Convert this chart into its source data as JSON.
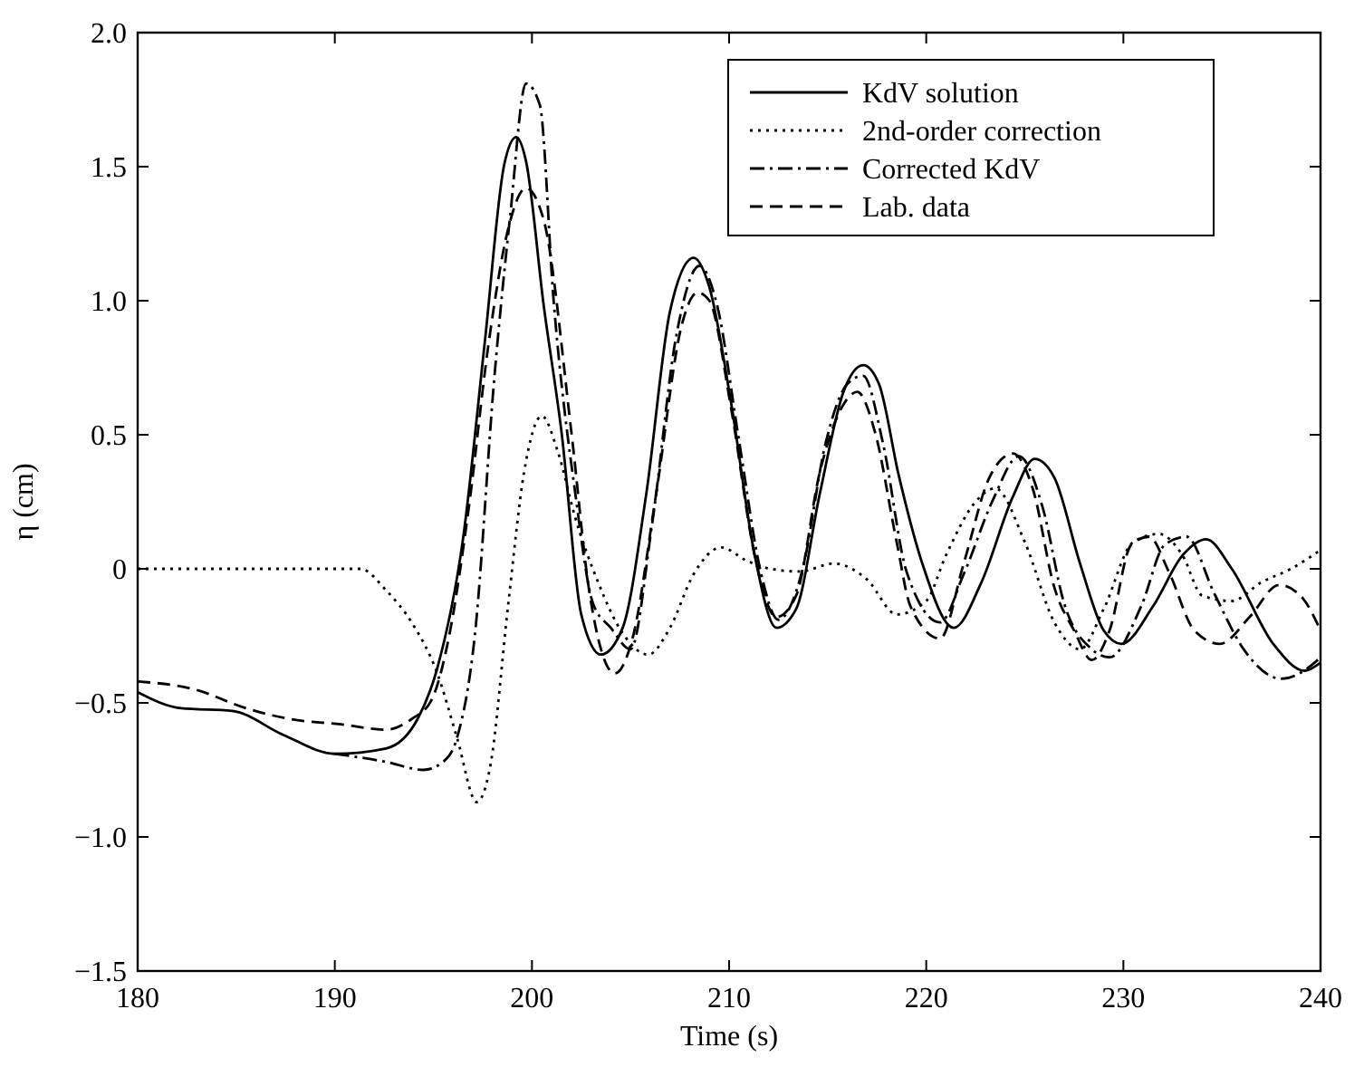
{
  "chart_data": {
    "type": "line",
    "xlabel": "Time (s)",
    "ylabel": "η (cm)",
    "xlim": [
      180,
      240
    ],
    "ylim": [
      -1.5,
      2
    ],
    "xticks": [
      180,
      190,
      200,
      210,
      220,
      230,
      240
    ],
    "yticks": [
      {
        "value": -1.5,
        "label": "−1.5"
      },
      {
        "value": -1,
        "label": "−1.0"
      },
      {
        "value": -0.5,
        "label": "−0.5"
      },
      0,
      {
        "value": 0.5,
        "label": "0.5"
      },
      {
        "value": 1,
        "label": "1.0"
      },
      {
        "value": 1.5,
        "label": "1.5"
      },
      {
        "value": 2,
        "label": "2.0"
      }
    ],
    "grid": false,
    "legend": "top right",
    "series": [
      {
        "name": "KdV solution",
        "color": "#000000",
        "line_style": "solid",
        "x": [
          180,
          182.2,
          184.8,
          187.4,
          190,
          192.6,
          194.2,
          195.2,
          196.5,
          197.6,
          198.6,
          199.2,
          199.7,
          200.6,
          201.5,
          202.5,
          203.5,
          204.6,
          205.8,
          207,
          208.2,
          209,
          210.1,
          211.3,
          212.4,
          213.4,
          214.6,
          215.8,
          216.8,
          217.6,
          218.6,
          219.8,
          221.4,
          222.8,
          224.4,
          225.5,
          226.5,
          227.8,
          229,
          229.9,
          231.5,
          233,
          234.2,
          235.5,
          237.6,
          239.2,
          240
        ],
        "values": [
          -0.46,
          -0.52,
          -0.53,
          -0.62,
          -0.69,
          -0.67,
          -0.56,
          -0.37,
          0.11,
          0.84,
          1.51,
          1.61,
          1.52,
          0.98,
          0.51,
          -0.17,
          -0.32,
          -0.22,
          0.28,
          0.96,
          1.16,
          1.05,
          0.62,
          0.05,
          -0.22,
          -0.15,
          0.28,
          0.66,
          0.76,
          0.69,
          0.35,
          0.02,
          -0.22,
          -0.05,
          0.27,
          0.41,
          0.34,
          0.02,
          -0.23,
          -0.28,
          -0.14,
          0.05,
          0.11,
          0,
          -0.28,
          -0.38,
          -0.35
        ]
      },
      {
        "name": "2nd-order correction",
        "color": "#000000",
        "line_style": "dotted",
        "x": [
          180,
          185,
          191.3,
          192.6,
          193.9,
          195.2,
          196.2,
          197.2,
          197.9,
          198.8,
          199.6,
          200.5,
          201.3,
          202.2,
          203.3,
          204.6,
          205.9,
          207,
          208.2,
          209.6,
          210.9,
          212.1,
          213.6,
          215.3,
          217,
          218.5,
          220,
          221,
          222.5,
          223.5,
          225,
          226.5,
          227.8,
          229,
          230.5,
          231.8,
          233,
          234,
          235.5,
          237,
          238.5,
          240
        ],
        "values": [
          0,
          0,
          0,
          -0.08,
          -0.2,
          -0.39,
          -0.63,
          -0.87,
          -0.73,
          -0.13,
          0.36,
          0.57,
          0.44,
          0.19,
          -0.04,
          -0.24,
          -0.32,
          -0.22,
          -0.02,
          0.08,
          0.03,
          0,
          -0.01,
          0.02,
          -0.04,
          -0.17,
          -0.12,
          0.05,
          0.25,
          0.3,
          0.1,
          -0.2,
          -0.3,
          -0.15,
          0.1,
          0.13,
          0.05,
          -0.1,
          -0.12,
          -0.05,
          0,
          0.07
        ]
      },
      {
        "name": "Corrected KdV",
        "color": "#000000",
        "line_style": "dashdot",
        "x": [
          190,
          192.6,
          194.5,
          195.5,
          196.2,
          197.1,
          198.1,
          198.9,
          199.7,
          200.4,
          201.1,
          202.2,
          203.1,
          204,
          205,
          206.1,
          207.3,
          208.5,
          209.4,
          210.5,
          211.6,
          212.5,
          213.7,
          214.9,
          216,
          216.8,
          217.8,
          219,
          220.7,
          221.9,
          223.4,
          224.7,
          225.9,
          227,
          228.4,
          229.3,
          230.9,
          232.1,
          233.2,
          234.6,
          236.1,
          238,
          239.7,
          240
        ],
        "values": [
          -0.69,
          -0.72,
          -0.75,
          -0.72,
          -0.63,
          -0.25,
          0.72,
          1.32,
          1.81,
          1.73,
          1,
          0.28,
          -0.13,
          -0.22,
          -0.3,
          0.17,
          0.86,
          1.13,
          0.98,
          0.48,
          -0.01,
          -0.19,
          -0.01,
          0.47,
          0.69,
          0.72,
          0.47,
          -0.01,
          -0.2,
          -0.02,
          0.26,
          0.42,
          0.23,
          -0.13,
          -0.3,
          -0.33,
          -0.14,
          0.09,
          0.12,
          -0.09,
          -0.3,
          -0.41,
          -0.35,
          -0.33
        ]
      },
      {
        "name": "Lab. data",
        "color": "#000000",
        "line_style": "dashed",
        "x": [
          180,
          182.9,
          185.5,
          187.7,
          190.3,
          192.6,
          193.9,
          194.9,
          195.8,
          196.8,
          197.8,
          198.8,
          199.7,
          200.6,
          202,
          202.9,
          204.2,
          205.1,
          206.3,
          207.6,
          208.4,
          209,
          210.1,
          211.3,
          212.4,
          213.4,
          214.6,
          215.7,
          216.5,
          217.4,
          218.5,
          219.2,
          220.7,
          221.9,
          223.2,
          224.4,
          225.4,
          226.5,
          227.5,
          228.4,
          229.3,
          230.4,
          231.3,
          232.3,
          233.6,
          234.9,
          236.4,
          237.9,
          239.1,
          240
        ],
        "values": [
          -0.42,
          -0.45,
          -0.52,
          -0.56,
          -0.58,
          -0.6,
          -0.56,
          -0.49,
          -0.25,
          0.23,
          0.84,
          1.27,
          1.42,
          1.3,
          0.51,
          -0.08,
          -0.39,
          -0.26,
          0.28,
          0.91,
          1.03,
          1,
          0.6,
          0.05,
          -0.18,
          -0.1,
          0.36,
          0.6,
          0.66,
          0.51,
          0.1,
          -0.14,
          -0.26,
          0.02,
          0.34,
          0.43,
          0.3,
          -0.07,
          -0.23,
          -0.34,
          -0.23,
          0.09,
          0.12,
          -0.01,
          -0.23,
          -0.28,
          -0.18,
          -0.06,
          -0.11,
          -0.23
        ]
      }
    ]
  }
}
